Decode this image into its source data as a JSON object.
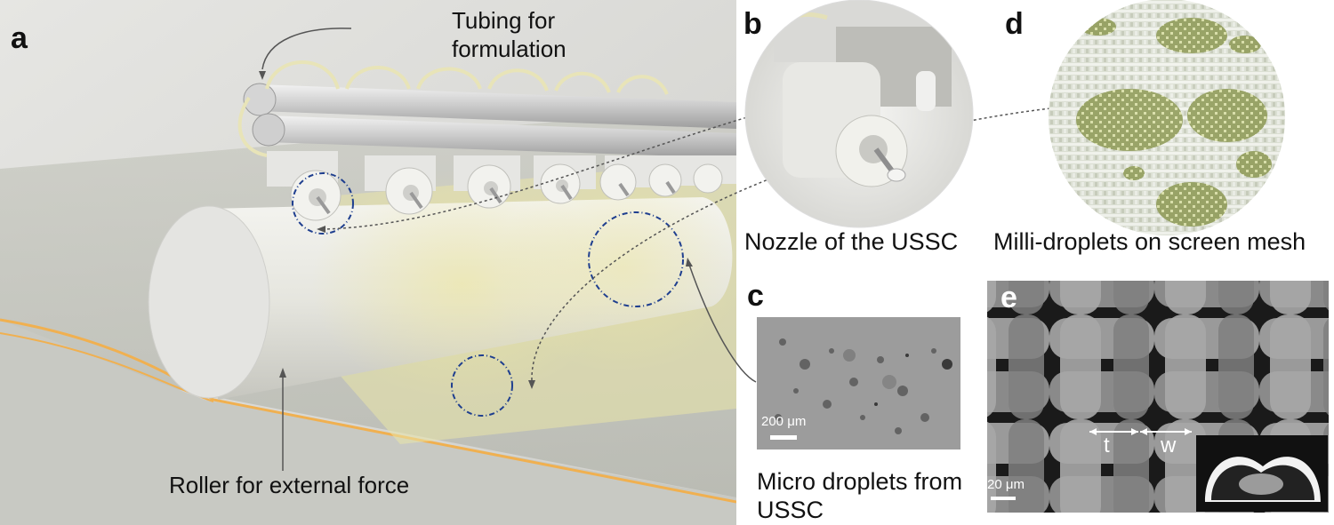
{
  "figure": {
    "panels": {
      "a": {
        "letter": "a",
        "tubing_label_line1": "Tubing for",
        "tubing_label_line2": "formulation",
        "roller_label": "Roller for external force"
      },
      "b": {
        "letter": "b",
        "caption": "Nozzle of the USSC"
      },
      "c": {
        "letter": "c",
        "scale_bar": "200 μm",
        "caption_line1": "Micro droplets from",
        "caption_line2": "USSC"
      },
      "d": {
        "letter": "d",
        "caption": "Milli-droplets on screen mesh"
      },
      "e": {
        "letter": "e",
        "scale_bar": "20 μm",
        "label_t": "t",
        "label_w": "w"
      }
    },
    "colors": {
      "background_panel_a": "#dcdcd8",
      "film_yellow": "#e8e39a",
      "film_edge": "#f0b050",
      "droplet_green": "#9aa860",
      "sem_gray": "#8a8a8a",
      "circle_blue": "#1f3f8f"
    }
  }
}
